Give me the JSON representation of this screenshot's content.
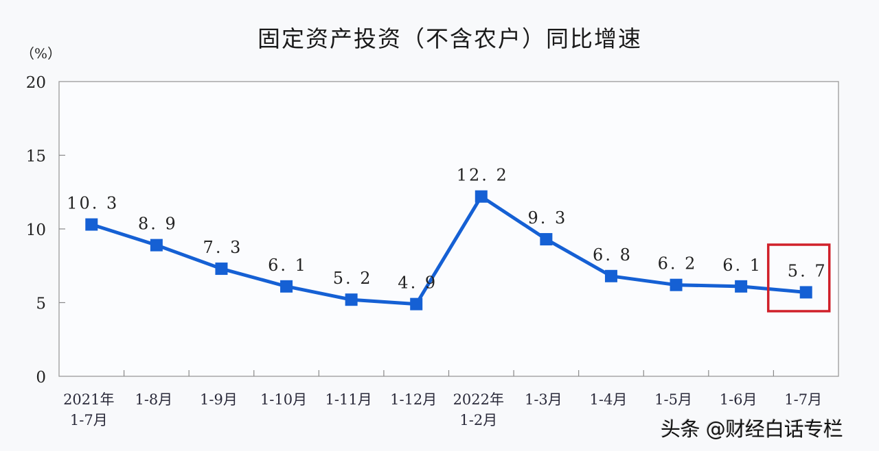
{
  "chart_data": {
    "type": "line",
    "title": "固定资产投资（不含农户）同比增速",
    "ylabel": "（%）",
    "xlabel": "",
    "ylim": [
      0,
      20
    ],
    "yticks": [
      0,
      5,
      10,
      15,
      20
    ],
    "grid": false,
    "legend": null,
    "categories": [
      [
        "2021年",
        "1-7月"
      ],
      [
        "1-8月"
      ],
      [
        "1-9月"
      ],
      [
        "1-10月"
      ],
      [
        "1-11月"
      ],
      [
        "1-12月"
      ],
      [
        "2022年",
        "1-2月"
      ],
      [
        "1-3月"
      ],
      [
        "1-4月"
      ],
      [
        "1-5月"
      ],
      [
        "1-6月"
      ],
      [
        "1-7月"
      ]
    ],
    "series": [
      {
        "name": "固定资产投资（不含农户）同比增速",
        "values": [
          10.3,
          8.9,
          7.3,
          6.1,
          5.2,
          4.9,
          12.2,
          9.3,
          6.8,
          6.2,
          6.1,
          5.7
        ],
        "labels": [
          "10.3",
          "8.9",
          "7.3",
          "6.1",
          "5.2",
          "4.9",
          "12.2",
          "9.3",
          "6.8",
          "6.2",
          "6.1",
          "5.7"
        ],
        "color": "#1560d4"
      }
    ],
    "annotations": [
      {
        "type": "highlight-box",
        "target_index": 11,
        "color": "#d0202a"
      }
    ]
  },
  "watermark": "头条 @财经白话专栏",
  "colors": {
    "line": "#1560d4",
    "highlight": "#d0202a",
    "axis": "#888888",
    "text": "#222222"
  }
}
